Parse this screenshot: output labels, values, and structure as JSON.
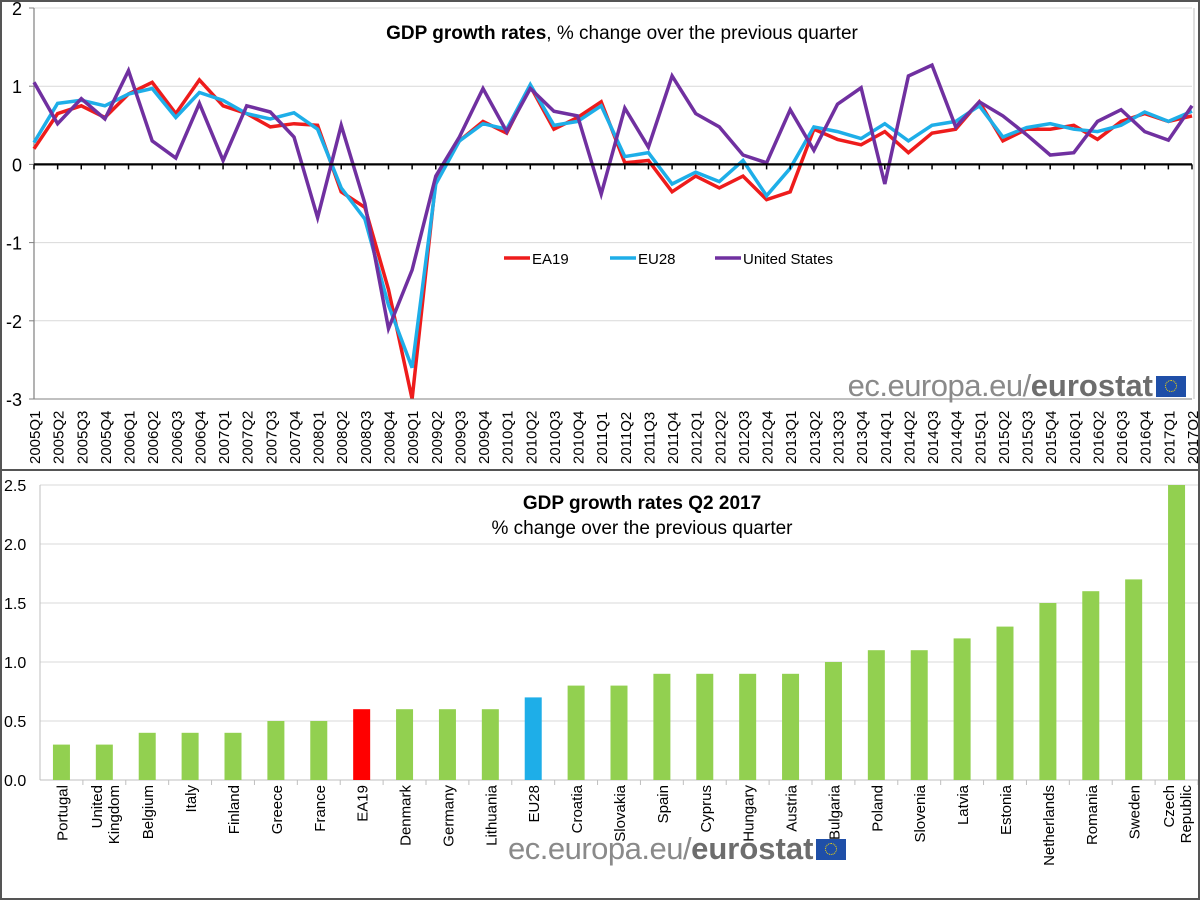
{
  "chart_data": [
    {
      "type": "line",
      "title_bold": "GDP growth rates",
      "title_rest": ", % change over the previous quarter",
      "xlabel": "",
      "ylabel": "",
      "ylim": [
        -3,
        2
      ],
      "yticks": [
        2,
        1,
        0,
        -1,
        -2,
        -3
      ],
      "grid": true,
      "legend_position": "center",
      "x": [
        "2005Q1",
        "2005Q2",
        "2005Q3",
        "2005Q4",
        "2006Q1",
        "2006Q2",
        "2006Q3",
        "2006Q4",
        "2007Q1",
        "2007Q2",
        "2007Q3",
        "2007Q4",
        "2008Q1",
        "2008Q2",
        "2008Q3",
        "2008Q4",
        "2009Q1",
        "2009Q2",
        "2009Q3",
        "2009Q4",
        "2010Q1",
        "2010Q2",
        "2010Q3",
        "2010Q4",
        "2011Q1",
        "2011Q2",
        "2011Q3",
        "2011Q4",
        "2012Q1",
        "2012Q2",
        "2012Q3",
        "2012Q4",
        "2013Q1",
        "2013Q2",
        "2013Q3",
        "2013Q4",
        "2014Q1",
        "2014Q2",
        "2014Q3",
        "2014Q4",
        "2015Q1",
        "2015Q2",
        "2015Q3",
        "2015Q4",
        "2016Q1",
        "2016Q2",
        "2016Q3",
        "2016Q4",
        "2017Q1",
        "2017Q2"
      ],
      "series": [
        {
          "name": "EA19",
          "color": "#ee1c1c",
          "values": [
            0.2,
            0.65,
            0.75,
            0.6,
            0.9,
            1.05,
            0.65,
            1.08,
            0.75,
            0.65,
            0.48,
            0.52,
            0.5,
            -0.35,
            -0.55,
            -1.6,
            -3.0,
            -0.2,
            0.3,
            0.55,
            0.4,
            1.0,
            0.45,
            0.6,
            0.8,
            0.02,
            0.05,
            -0.35,
            -0.15,
            -0.3,
            -0.15,
            -0.45,
            -0.35,
            0.45,
            0.32,
            0.25,
            0.42,
            0.15,
            0.4,
            0.45,
            0.8,
            0.3,
            0.45,
            0.45,
            0.5,
            0.32,
            0.55,
            0.65,
            0.55,
            0.62
          ]
        },
        {
          "name": "EU28",
          "color": "#1eaee8",
          "values": [
            0.28,
            0.78,
            0.82,
            0.75,
            0.9,
            0.97,
            0.6,
            0.92,
            0.82,
            0.65,
            0.58,
            0.66,
            0.45,
            -0.3,
            -0.7,
            -1.8,
            -2.6,
            -0.25,
            0.3,
            0.52,
            0.45,
            1.02,
            0.5,
            0.55,
            0.75,
            0.1,
            0.15,
            -0.25,
            -0.1,
            -0.22,
            0.05,
            -0.4,
            -0.05,
            0.48,
            0.42,
            0.33,
            0.52,
            0.3,
            0.5,
            0.55,
            0.75,
            0.35,
            0.47,
            0.52,
            0.45,
            0.42,
            0.5,
            0.67,
            0.55,
            0.68
          ]
        },
        {
          "name": "United States",
          "color": "#7030a0",
          "values": [
            1.05,
            0.52,
            0.84,
            0.58,
            1.2,
            0.3,
            0.08,
            0.78,
            0.05,
            0.75,
            0.67,
            0.35,
            -0.68,
            0.5,
            -0.5,
            -2.1,
            -1.35,
            -0.15,
            0.35,
            0.97,
            0.42,
            0.97,
            0.68,
            0.62,
            -0.38,
            0.72,
            0.22,
            1.13,
            0.65,
            0.48,
            0.12,
            0.02,
            0.7,
            0.18,
            0.77,
            0.98,
            -0.25,
            1.13,
            1.27,
            0.48,
            0.8,
            0.62,
            0.38,
            0.12,
            0.15,
            0.55,
            0.7,
            0.42,
            0.31,
            0.75
          ]
        }
      ]
    },
    {
      "type": "bar",
      "title": "GDP growth rates Q2 2017",
      "subtitle": "% change over the previous quarter",
      "xlabel": "",
      "ylabel": "",
      "ylim": [
        0,
        2.5
      ],
      "yticks": [
        "0.0",
        "0.5",
        "1.0",
        "1.5",
        "2.0",
        "2.5"
      ],
      "grid": true,
      "categories": [
        "Portugal",
        "United Kingdom",
        "Belgium",
        "Italy",
        "Finland",
        "Greece",
        "France",
        "EA19",
        "Denmark",
        "Germany",
        "Lithuania",
        "EU28",
        "Croatia",
        "Slovakia",
        "Spain",
        "Cyprus",
        "Hungary",
        "Austria",
        "Bulgaria",
        "Poland",
        "Slovenia",
        "Latvia",
        "Estonia",
        "Netherlands",
        "Romania",
        "Sweden",
        "Czech Republic"
      ],
      "values": [
        0.3,
        0.3,
        0.4,
        0.4,
        0.4,
        0.5,
        0.5,
        0.6,
        0.6,
        0.6,
        0.6,
        0.7,
        0.8,
        0.8,
        0.9,
        0.9,
        0.9,
        0.9,
        1.0,
        1.1,
        1.1,
        1.2,
        1.3,
        1.5,
        1.6,
        1.7,
        2.5
      ],
      "colors": {
        "default": "#92d050",
        "EA19": "#ff0000",
        "EU28": "#1eaee8"
      }
    }
  ],
  "branding": {
    "domain": "ec.europa.eu/",
    "brand": "eurostat",
    "flag_icon": "eu-flag-icon"
  }
}
